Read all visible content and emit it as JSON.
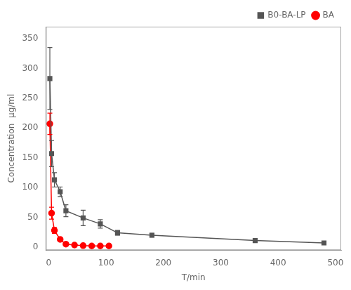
{
  "chart_data": {
    "type": "line",
    "xlabel": "T/min",
    "ylabel": "Concentration  μg/ml",
    "xlim": [
      -5,
      510
    ],
    "ylim": [
      -5,
      370
    ],
    "xticks": [
      0,
      100,
      200,
      300,
      400,
      500
    ],
    "yticks": [
      0,
      50,
      100,
      150,
      200,
      250,
      300,
      350
    ],
    "grid": false,
    "legend": "upper right",
    "series": [
      {
        "name": "B0-BA-LP",
        "color": "#555555",
        "marker": "square",
        "line_style": "solid",
        "x": [
          2,
          5,
          10,
          20,
          30,
          60,
          90,
          120,
          180,
          360,
          480
        ],
        "values": [
          283,
          157,
          113,
          93,
          61,
          49,
          39,
          24,
          20,
          11,
          7
        ],
        "yerr": [
          52,
          22,
          12,
          8,
          10,
          13,
          7,
          4,
          3,
          2,
          1.5
        ]
      },
      {
        "name": "BA",
        "color": "#ff0000",
        "marker": "circle",
        "line_style": "solid",
        "x": [
          2,
          5,
          10,
          20,
          30,
          45,
          60,
          75,
          90,
          105
        ],
        "values": [
          207,
          57,
          28,
          13,
          5,
          3.5,
          2.5,
          2,
          2,
          2
        ],
        "yerr": [
          18,
          10,
          5,
          3,
          1,
          0.5,
          0.4,
          0.3,
          0.3,
          0.3
        ]
      }
    ]
  }
}
